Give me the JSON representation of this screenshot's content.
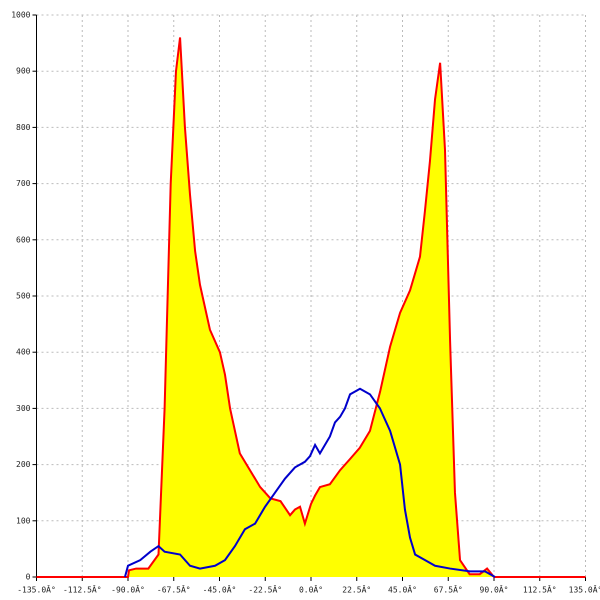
{
  "chart_data": {
    "type": "area",
    "xlim": [
      -135,
      135
    ],
    "xticks": [
      {
        "value": -135,
        "label": "-135.0Â°"
      },
      {
        "value": -112.5,
        "label": "-112.5Â°"
      },
      {
        "value": -90,
        "label": "-90.0Â°"
      },
      {
        "value": -67.5,
        "label": "-67.5Â°"
      },
      {
        "value": -45,
        "label": "-45.0Â°"
      },
      {
        "value": -22.5,
        "label": "-22.5Â°"
      },
      {
        "value": 0,
        "label": "0.0Â°"
      },
      {
        "value": 22.5,
        "label": "22.5Â°"
      },
      {
        "value": 45,
        "label": "45.0Â°"
      },
      {
        "value": 67.5,
        "label": "67.5Â°"
      },
      {
        "value": 90,
        "label": "90.0Â°"
      },
      {
        "value": 112.5,
        "label": "112.5Â°"
      },
      {
        "value": 135,
        "label": "135.0Â°"
      }
    ],
    "ylim": [
      0,
      1000
    ],
    "yticks": [
      0,
      100,
      200,
      300,
      400,
      500,
      600,
      700,
      800,
      900,
      1000
    ],
    "grid": true,
    "series": [
      {
        "color": "#ff0000",
        "fill": "#ffff00",
        "x": [
          -135,
          -90,
          -89.5,
          -86,
          -80,
          -75,
          -72,
          -69,
          -66.4,
          -64.4,
          -62,
          -59.5,
          -57,
          -54.6,
          -49.7,
          -44.8,
          -42.3,
          -39.8,
          -35,
          -30,
          -25,
          -20,
          -15,
          -10.3,
          -7.9,
          -5.4,
          -3,
          0,
          2,
          4.4,
          9.3,
          14.3,
          19.2,
          24,
          29,
          34,
          38.9,
          43.8,
          48.7,
          53.6,
          56,
          58.5,
          61,
          63.5,
          65.9,
          68.4,
          70.8,
          73.3,
          78,
          83,
          86.6,
          90,
          135
        ],
        "values": [
          0,
          0,
          12,
          15,
          15,
          40,
          300,
          700,
          900,
          960,
          800,
          680,
          580,
          520,
          440,
          400,
          360,
          300,
          220,
          190,
          160,
          140,
          135,
          110,
          120,
          125,
          95,
          130,
          145,
          160,
          165,
          190,
          210,
          230,
          260,
          330,
          410,
          470,
          510,
          570,
          650,
          740,
          850,
          915,
          760,
          420,
          150,
          30,
          5,
          5,
          15,
          0,
          0
        ]
      },
      {
        "color": "#0000cc",
        "x": [
          -91.5,
          -90,
          -84,
          -79,
          -75,
          -72,
          -64.4,
          -59.5,
          -54.6,
          -47.2,
          -42.3,
          -37.4,
          -32.5,
          -27.5,
          -22.6,
          -17.7,
          -12.8,
          -7.9,
          -3,
          -0.5,
          2,
          4.4,
          9.3,
          11.8,
          14.3,
          16.7,
          19.2,
          24.1,
          29,
          33.9,
          38.9,
          43.8,
          46.2,
          48.7,
          51.2,
          56.1,
          61,
          68.4,
          78.2,
          85.6,
          90.5
        ],
        "values": [
          0,
          20,
          30,
          45,
          55,
          45,
          40,
          20,
          15,
          20,
          30,
          55,
          85,
          95,
          125,
          150,
          175,
          195,
          205,
          215,
          235,
          220,
          250,
          275,
          285,
          300,
          325,
          335,
          325,
          300,
          260,
          200,
          120,
          70,
          40,
          30,
          20,
          15,
          10,
          10,
          0
        ]
      }
    ]
  }
}
